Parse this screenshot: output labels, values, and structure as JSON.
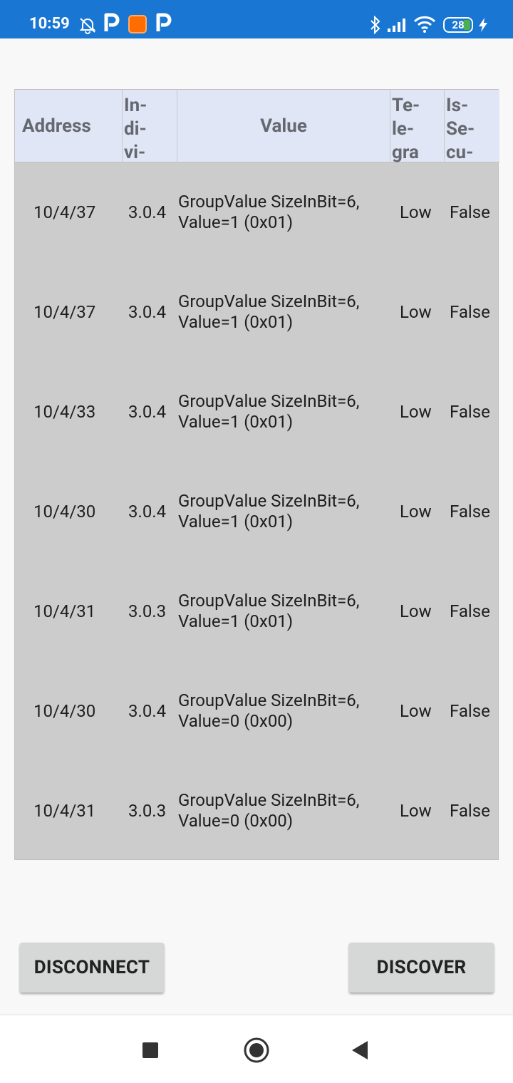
{
  "status_bar": {
    "time": "10:59",
    "battery": "28",
    "accent_color": "#1976d2"
  },
  "table": {
    "headers": {
      "address": "Address",
      "individual": [
        "In-",
        "di-",
        "vi-"
      ],
      "value": "Value",
      "telegram": [
        "Te-",
        "le-",
        "gra"
      ],
      "secure": [
        "Is-",
        "Se-",
        "cu-"
      ]
    },
    "rows": [
      {
        "address": "10/4/37",
        "individual": "3.0.4",
        "value_line1": "GroupValue SizeInBit=6,",
        "value_line2": "Value=1 (0x01)",
        "telegram": "Low",
        "secure": "False"
      },
      {
        "address": "10/4/37",
        "individual": "3.0.4",
        "value_line1": "GroupValue SizeInBit=6,",
        "value_line2": "Value=1 (0x01)",
        "telegram": "Low",
        "secure": "False"
      },
      {
        "address": "10/4/33",
        "individual": "3.0.4",
        "value_line1": "GroupValue SizeInBit=6,",
        "value_line2": "Value=1 (0x01)",
        "telegram": "Low",
        "secure": "False"
      },
      {
        "address": "10/4/30",
        "individual": "3.0.4",
        "value_line1": "GroupValue SizeInBit=6,",
        "value_line2": "Value=1 (0x01)",
        "telegram": "Low",
        "secure": "False"
      },
      {
        "address": "10/4/31",
        "individual": "3.0.3",
        "value_line1": "GroupValue SizeInBit=6,",
        "value_line2": "Value=1 (0x01)",
        "telegram": "Low",
        "secure": "False"
      },
      {
        "address": "10/4/30",
        "individual": "3.0.4",
        "value_line1": "GroupValue SizeInBit=6,",
        "value_line2": "Value=0 (0x00)",
        "telegram": "Low",
        "secure": "False"
      },
      {
        "address": "10/4/31",
        "individual": "3.0.3",
        "value_line1": "GroupValue SizeInBit=6,",
        "value_line2": "Value=0 (0x00)",
        "telegram": "Low",
        "secure": "False"
      }
    ]
  },
  "actions": {
    "disconnect_label": "DISCONNECT",
    "discover_label": "DISCOVER"
  },
  "nav": {
    "recents": "square-icon",
    "home": "circle-icon",
    "back": "triangle-back-icon"
  }
}
